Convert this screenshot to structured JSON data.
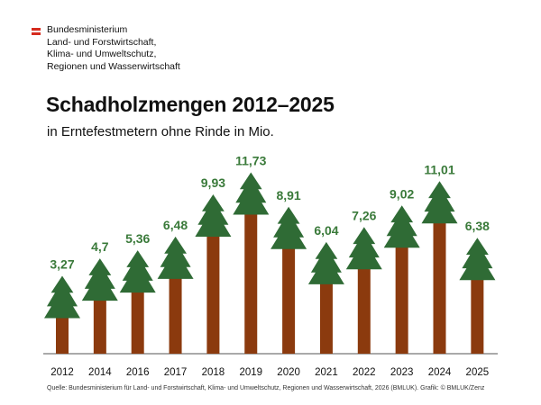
{
  "header": {
    "ministry_lines": [
      "Bundesministerium",
      "Land- und Forstwirtschaft,",
      "Klima- und Umweltschutz,",
      "Regionen und Wasserwirtschaft"
    ]
  },
  "chart_data": {
    "type": "bar",
    "title": "Schadholzmengen 2012–2025",
    "subtitle": "in Erntefestmetern ohne Rinde in Mio.",
    "categories": [
      "2012",
      "2014",
      "2016",
      "2017",
      "2018",
      "2019",
      "2020",
      "2021",
      "2022",
      "2023",
      "2024",
      "2025"
    ],
    "values": [
      3.27,
      4.7,
      5.36,
      6.48,
      9.93,
      11.73,
      8.91,
      6.04,
      7.26,
      9.02,
      11.01,
      6.38
    ],
    "value_labels": [
      "3,27",
      "4,7",
      "5,36",
      "6,48",
      "9,93",
      "11,73",
      "8,91",
      "6,04",
      "7,26",
      "9,02",
      "11,01",
      "6,38"
    ],
    "xlabel": "",
    "ylabel": "",
    "grid": false,
    "colors": {
      "trunk": "#8b3a0e",
      "crown": "#2f6b35",
      "label": "#3a7a3a",
      "baseline": "#555555"
    }
  },
  "source": "Quelle: Bundesministerium für Land- und Forstwirtschaft, Klima- und Umweltschutz, Regionen und Wasserwirtschaft, 2026 (BMLUK). Grafik: © BMLUK/Zenz"
}
